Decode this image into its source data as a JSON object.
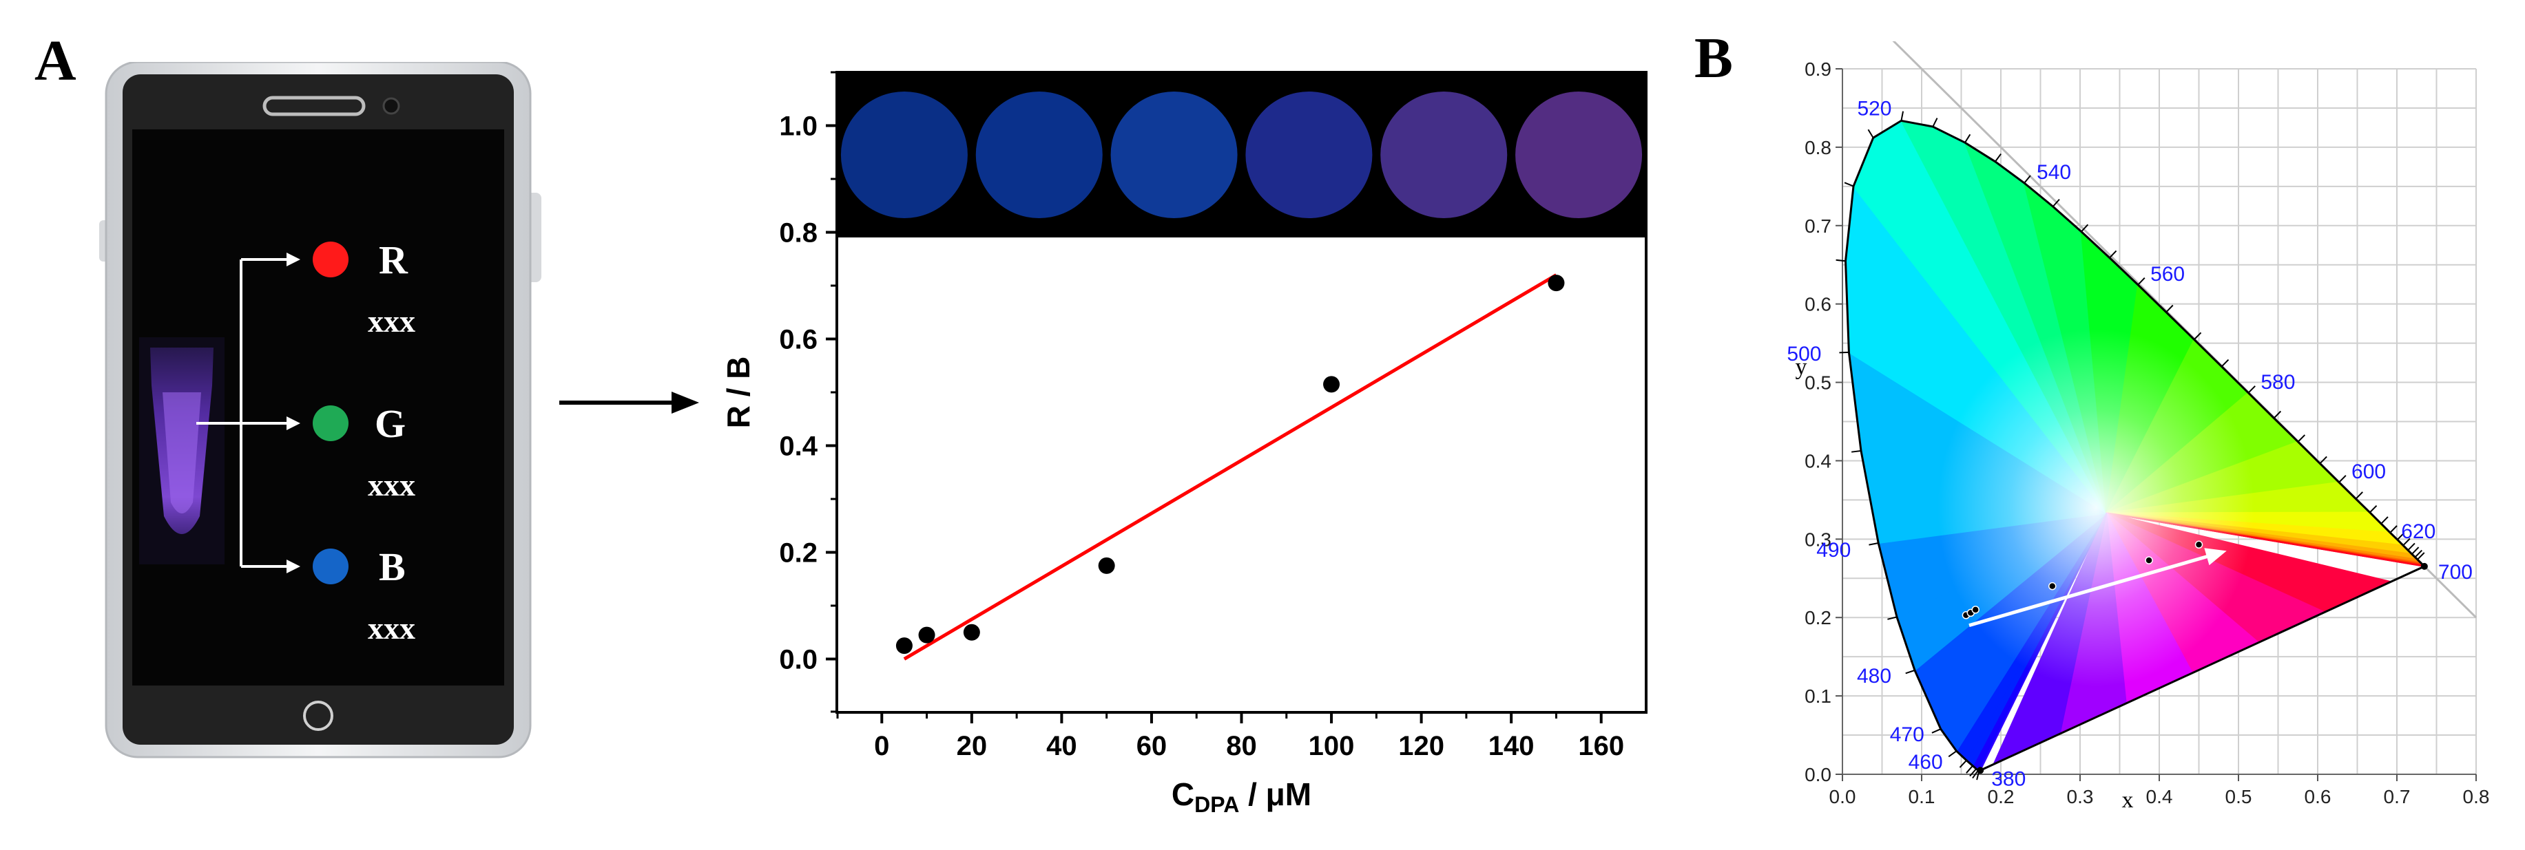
{
  "panels": {
    "a_label": "A",
    "b_label": "B"
  },
  "phone": {
    "channels": [
      {
        "letter": "R",
        "value": "xxx",
        "color": "#ff1a1a"
      },
      {
        "letter": "G",
        "value": "xxx",
        "color": "#1faa55"
      },
      {
        "letter": "B",
        "value": "xxx",
        "color": "#1565c8"
      }
    ],
    "tube_glow_color": "#7b3fd4"
  },
  "chart_data": [
    {
      "type": "scatter",
      "title": "",
      "xlabel_main": "C",
      "xlabel_sub": "DPA",
      "xlabel_unit": " / μM",
      "ylabel": "R / B",
      "xlim": [
        -10,
        170
      ],
      "ylim": [
        -0.1,
        1.1
      ],
      "xticks": [
        0,
        20,
        40,
        60,
        80,
        100,
        120,
        140,
        160
      ],
      "yticks": [
        "0.0",
        "0.2",
        "0.4",
        "0.6",
        "0.8",
        "1.0"
      ],
      "series": [
        {
          "x": [
            5,
            10,
            20,
            50,
            100,
            150
          ],
          "y": [
            0.025,
            0.045,
            0.05,
            0.175,
            0.515,
            0.705
          ],
          "color": "#000000"
        }
      ],
      "fit_line": {
        "x": [
          5,
          150
        ],
        "y": [
          0.0,
          0.72
        ],
        "color": "#ff0000"
      },
      "well_colors": [
        "#0a2f86",
        "#0a318c",
        "#0f3a98",
        "#1e2a8c",
        "#442f88",
        "#532d82"
      ]
    },
    {
      "type": "scatter",
      "title": "",
      "xlabel": "x",
      "ylabel": "y",
      "xlim": [
        0.0,
        0.8
      ],
      "ylim": [
        0.0,
        0.9
      ],
      "xticks": [
        "0.0",
        "0.1",
        "0.2",
        "0.3",
        "0.4",
        "0.5",
        "0.6",
        "0.7",
        "0.8"
      ],
      "yticks": [
        "0.0",
        "0.1",
        "0.2",
        "0.3",
        "0.4",
        "0.5",
        "0.6",
        "0.7",
        "0.8",
        "0.9"
      ],
      "wavelength_labels": [
        {
          "nm": "380",
          "x": 0.1741,
          "y": 0.005
        },
        {
          "nm": "460",
          "x": 0.144,
          "y": 0.0297
        },
        {
          "nm": "470",
          "x": 0.1241,
          "y": 0.0578
        },
        {
          "nm": "480",
          "x": 0.0913,
          "y": 0.1327
        },
        {
          "nm": "490",
          "x": 0.0454,
          "y": 0.295
        },
        {
          "nm": "500",
          "x": 0.0082,
          "y": 0.5384
        },
        {
          "nm": "520",
          "x": 0.0743,
          "y": 0.8338
        },
        {
          "nm": "540",
          "x": 0.2296,
          "y": 0.7543
        },
        {
          "nm": "560",
          "x": 0.3731,
          "y": 0.6245
        },
        {
          "nm": "580",
          "x": 0.5125,
          "y": 0.4866
        },
        {
          "nm": "600",
          "x": 0.627,
          "y": 0.3725
        },
        {
          "nm": "620",
          "x": 0.6915,
          "y": 0.3083
        },
        {
          "nm": "700",
          "x": 0.7347,
          "y": 0.2653
        }
      ],
      "series": [
        {
          "x": [
            0.156,
            0.162,
            0.168,
            0.265,
            0.387,
            0.45
          ],
          "y": [
            0.203,
            0.206,
            0.21,
            0.24,
            0.273,
            0.293
          ],
          "color": "#000000"
        }
      ],
      "arrow": {
        "from": [
          0.16,
          0.19
        ],
        "to": [
          0.485,
          0.285
        ],
        "color": "#ffffff"
      },
      "label_color": "#1a1aff"
    }
  ]
}
